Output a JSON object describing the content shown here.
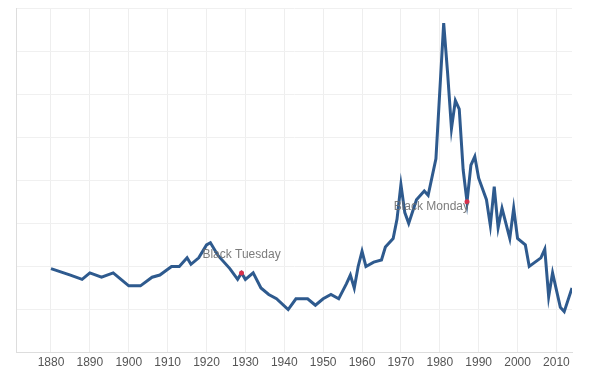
{
  "chart_data": {
    "type": "line",
    "x": [
      1880,
      1885,
      1888,
      1890,
      1893,
      1896,
      1898,
      1900,
      1903,
      1906,
      1908,
      1911,
      1913,
      1915,
      1916,
      1918,
      1920,
      1921,
      1923,
      1926,
      1928,
      1929,
      1930,
      1932,
      1934,
      1936,
      1938,
      1941,
      1943,
      1946,
      1948,
      1950,
      1952,
      1954,
      1956,
      1957,
      1958,
      1959,
      1960,
      1961,
      1963,
      1965,
      1966,
      1968,
      1969,
      1970,
      1971,
      1972,
      1974,
      1976,
      1977,
      1979,
      1981,
      1982,
      1983,
      1984,
      1985,
      1986,
      1987,
      1988,
      1989,
      1990,
      1992,
      1993,
      1994,
      1995,
      1996,
      1998,
      1999,
      2000,
      2002,
      2003,
      2006,
      2007,
      2008,
      2009,
      2011,
      2012,
      2014
    ],
    "values": [
      3.9,
      3.6,
      3.4,
      3.7,
      3.5,
      3.7,
      3.4,
      3.1,
      3.1,
      3.5,
      3.6,
      4.0,
      4.0,
      4.4,
      4.1,
      4.4,
      5.0,
      5.1,
      4.5,
      3.9,
      3.4,
      3.7,
      3.4,
      3.7,
      3.0,
      2.7,
      2.5,
      2.0,
      2.5,
      2.5,
      2.2,
      2.5,
      2.7,
      2.5,
      3.2,
      3.6,
      3.0,
      4.0,
      4.7,
      4.0,
      4.2,
      4.3,
      4.9,
      5.3,
      6.2,
      7.8,
      6.5,
      6.0,
      7.1,
      7.5,
      7.3,
      9.0,
      15.3,
      13.0,
      10.4,
      11.7,
      11.3,
      8.5,
      7.0,
      8.7,
      9.1,
      8.1,
      7.1,
      5.9,
      7.7,
      5.8,
      6.7,
      5.3,
      6.7,
      5.3,
      5.0,
      4.0,
      4.4,
      4.8,
      2.6,
      3.7,
      2.1,
      1.9,
      3.0
    ],
    "color": "#2e5a8e",
    "xlim": [
      1871,
      2014
    ],
    "xticks": [
      1880,
      1890,
      1900,
      1910,
      1920,
      1930,
      1940,
      1950,
      1960,
      1970,
      1980,
      1990,
      2000,
      2010
    ],
    "ylim": [
      0,
      16
    ],
    "yticks": [
      0,
      2,
      4,
      6,
      8,
      10,
      12,
      14,
      16
    ],
    "tick_labels": "x",
    "grid": true,
    "annotations": [
      {
        "label": "Black Tuesday",
        "x": 1929,
        "y": 3.7,
        "color": "#d6304a"
      },
      {
        "label": "Black Monday",
        "x": 1987,
        "y": 7.0,
        "color": "#d6304a"
      }
    ]
  }
}
